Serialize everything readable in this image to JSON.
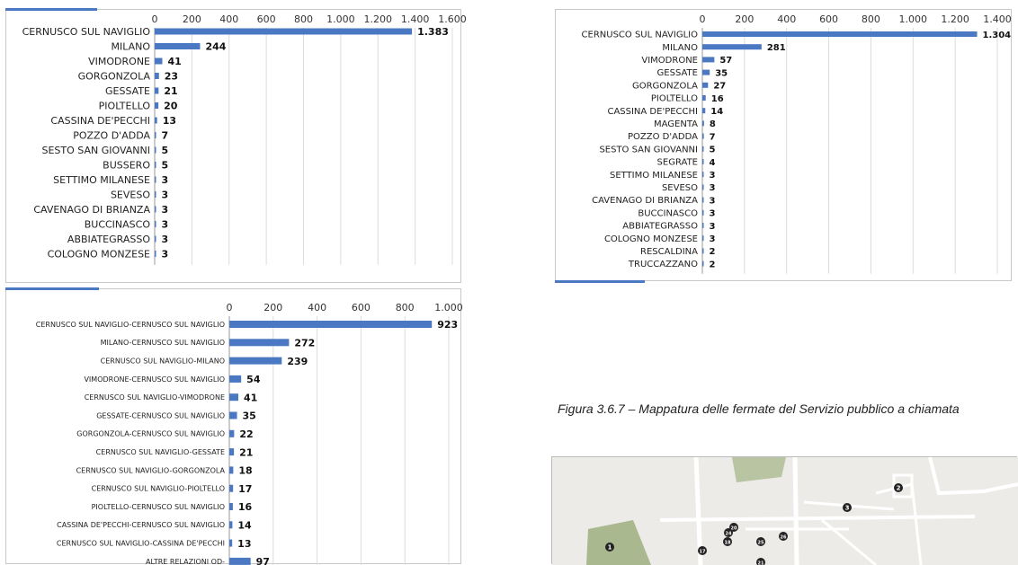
{
  "chart_data": [
    {
      "type": "bar",
      "orientation": "horizontal",
      "title": "",
      "xlabel": "",
      "ylabel": "",
      "xlim": [
        0,
        1600
      ],
      "ticks": [
        "0",
        "200",
        "400",
        "600",
        "800",
        "1.000",
        "1.200",
        "1.400",
        "1.600"
      ],
      "grid": true,
      "color": "#4a78c2",
      "categories": [
        "CERNUSCO SUL NAVIGLIO",
        "MILANO",
        "VIMODRONE",
        "GORGONZOLA",
        "GESSATE",
        "PIOLTELLO",
        "CASSINA DE'PECCHI",
        "POZZO D'ADDA",
        "SESTO SAN GIOVANNI",
        "BUSSERO",
        "SETTIMO MILANESE",
        "SEVESO",
        "CAVENAGO DI BRIANZA",
        "BUCCINASCO",
        "ABBIATEGRASSO",
        "COLOGNO MONZESE"
      ],
      "values": [
        1383,
        244,
        41,
        23,
        21,
        20,
        13,
        7,
        5,
        5,
        3,
        3,
        3,
        3,
        3,
        3
      ],
      "labels": [
        "1.383",
        "244",
        "41",
        "23",
        "21",
        "20",
        "13",
        "7",
        "5",
        "5",
        "3",
        "3",
        "3",
        "3",
        "3",
        "3"
      ]
    },
    {
      "type": "bar",
      "orientation": "horizontal",
      "title": "",
      "xlabel": "",
      "ylabel": "",
      "xlim": [
        0,
        1400
      ],
      "ticks": [
        "0",
        "200",
        "400",
        "600",
        "800",
        "1.000",
        "1.200",
        "1.400"
      ],
      "grid": true,
      "color": "#4a78c2",
      "categories": [
        "CERNUSCO SUL NAVIGLIO",
        "MILANO",
        "VIMODRONE",
        "GESSATE",
        "GORGONZOLA",
        "PIOLTELLO",
        "CASSINA DE'PECCHI",
        "MAGENTA",
        "POZZO D'ADDA",
        "SESTO SAN GIOVANNI",
        "SEGRATE",
        "SETTIMO MILANESE",
        "SEVESO",
        "CAVENAGO DI BRIANZA",
        "BUCCINASCO",
        "ABBIATEGRASSO",
        "COLOGNO MONZESE",
        "RESCALDINA",
        "TRUCCAZZANO"
      ],
      "values": [
        1304,
        281,
        57,
        35,
        27,
        16,
        14,
        8,
        7,
        5,
        4,
        3,
        3,
        3,
        3,
        3,
        3,
        2,
        2
      ],
      "labels": [
        "1.304",
        "281",
        "57",
        "35",
        "27",
        "16",
        "14",
        "8",
        "7",
        "5",
        "4",
        "3",
        "3",
        "3",
        "3",
        "3",
        "3",
        "2",
        "2"
      ]
    },
    {
      "type": "bar",
      "orientation": "horizontal",
      "title": "",
      "xlabel": "",
      "ylabel": "",
      "xlim": [
        0,
        1000
      ],
      "ticks": [
        "0",
        "200",
        "400",
        "600",
        "800",
        "1.000"
      ],
      "grid": true,
      "color": "#4a78c2",
      "categories": [
        "CERNUSCO SUL NAVIGLIO-CERNUSCO SUL NAVIGLIO",
        "MILANO-CERNUSCO SUL NAVIGLIO",
        "CERNUSCO SUL NAVIGLIO-MILANO",
        "VIMODRONE-CERNUSCO SUL NAVIGLIO",
        "CERNUSCO SUL NAVIGLIO-VIMODRONE",
        "GESSATE-CERNUSCO SUL NAVIGLIO",
        "GORGONZOLA-CERNUSCO SUL NAVIGLIO",
        "CERNUSCO SUL NAVIGLIO-GESSATE",
        "CERNUSCO SUL NAVIGLIO-GORGONZOLA",
        "CERNUSCO SUL NAVIGLIO-PIOLTELLO",
        "PIOLTELLO-CERNUSCO SUL NAVIGLIO",
        "CASSINA DE'PECCHI-CERNUSCO SUL NAVIGLIO",
        "CERNUSCO SUL NAVIGLIO-CASSINA DE'PECCHI",
        "ALTRE RELAZIONI OD-"
      ],
      "values": [
        923,
        272,
        239,
        54,
        41,
        35,
        22,
        21,
        18,
        17,
        16,
        14,
        13,
        97
      ],
      "labels": [
        "923",
        "272",
        "239",
        "54",
        "41",
        "35",
        "22",
        "21",
        "18",
        "17",
        "16",
        "14",
        "13",
        "97"
      ]
    }
  ],
  "caption": {
    "text": "Figura 3.6.7 – Mappatura delle fermate del Servizio pubblico a chiamata"
  },
  "map": {
    "stops": [
      "1",
      "2",
      "3",
      "17",
      "18",
      "20",
      "21",
      "24",
      "25",
      "26"
    ]
  }
}
